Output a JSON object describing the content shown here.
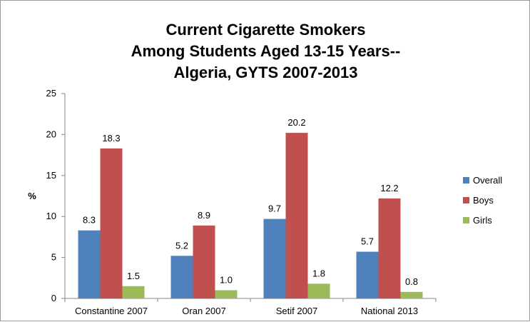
{
  "chart_data": {
    "type": "bar",
    "title_lines": [
      "Current Cigarette Smokers",
      "Among Students Aged 13-15 Years--",
      "Algeria, GYTS 2007-2013"
    ],
    "categories": [
      "Constantine 2007",
      "Oran 2007",
      "Setif 2007",
      "National 2013"
    ],
    "series": [
      {
        "name": "Overall",
        "values": [
          8.3,
          5.2,
          9.7,
          5.7
        ],
        "labels": [
          "8.3",
          "5.2",
          "9.7",
          "5.7"
        ],
        "color": "#4F81BD"
      },
      {
        "name": "Boys",
        "values": [
          18.3,
          8.9,
          20.2,
          12.2
        ],
        "labels": [
          "18.3",
          "8.9",
          "20.2",
          "12.2"
        ],
        "color": "#C0504D"
      },
      {
        "name": "Girls",
        "values": [
          1.5,
          1.0,
          1.8,
          0.8
        ],
        "labels": [
          "1.5",
          "1.0",
          "1.8",
          "0.8"
        ],
        "color": "#9BBB59"
      }
    ],
    "ylabel": "%",
    "xlabel": "",
    "ylim": [
      0,
      25
    ],
    "yticks": [
      0,
      5,
      10,
      15,
      20,
      25
    ],
    "grid": false,
    "legend_position": "right"
  }
}
